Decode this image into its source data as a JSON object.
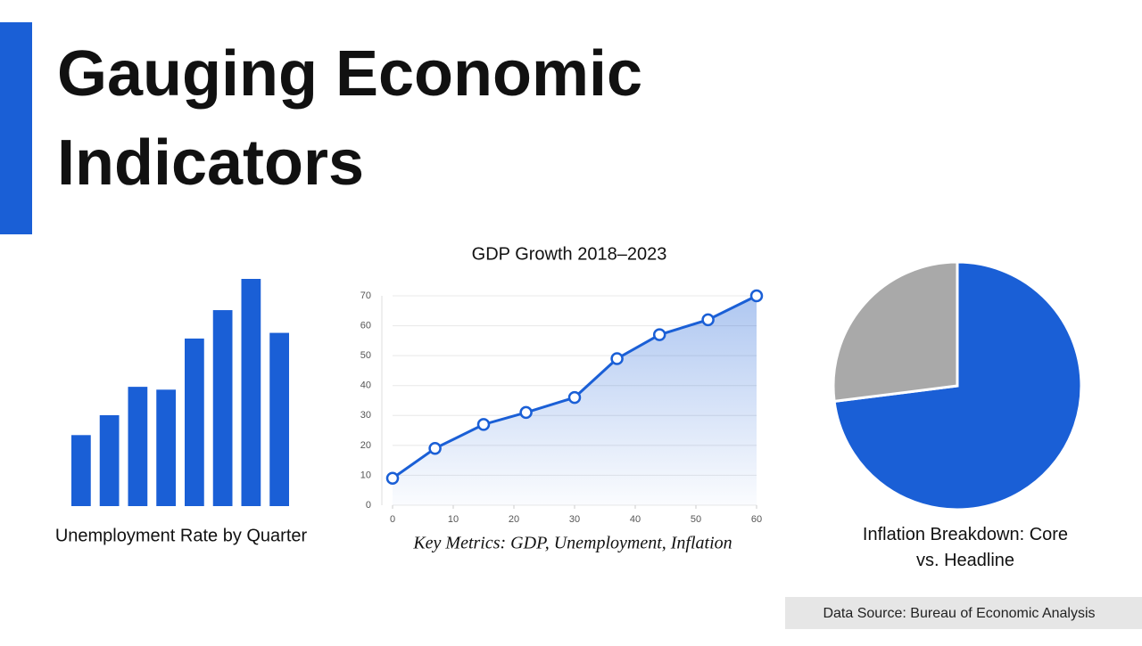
{
  "title": "Gauging Economic Indicators",
  "footer": "Data Source: Bureau of Economic Analysis",
  "chart_data": [
    {
      "type": "bar",
      "caption": "Unemployment Rate by Quarter",
      "categories": [
        null,
        null,
        null,
        null,
        null,
        null,
        null,
        null
      ],
      "values": [
        2.5,
        3.2,
        4.2,
        4.1,
        5.9,
        6.9,
        8.0,
        6.1
      ],
      "color": "#1a5fd6",
      "ylim": [
        0,
        8
      ]
    },
    {
      "type": "line",
      "title": "GDP Growth 2018–2023",
      "caption": "Key Metrics: GDP, Unemployment, Inflation",
      "x": [
        0,
        7,
        15,
        22,
        30,
        37,
        44,
        52,
        60
      ],
      "values": [
        9,
        19,
        27,
        31,
        36,
        49,
        57,
        62,
        70
      ],
      "color": "#1a5fd6",
      "xlim": [
        0,
        60
      ],
      "xticks": [
        0,
        10,
        20,
        30,
        40,
        50,
        60
      ],
      "ylim": [
        0,
        70
      ],
      "yticks": [
        0,
        10,
        20,
        30,
        40,
        50,
        60,
        70
      ],
      "grid": true
    },
    {
      "type": "pie",
      "caption": "Inflation Breakdown: Core vs. Headline",
      "values": [
        73,
        27
      ],
      "colors": [
        "#1a5fd6",
        "#a9a9a9"
      ]
    }
  ]
}
